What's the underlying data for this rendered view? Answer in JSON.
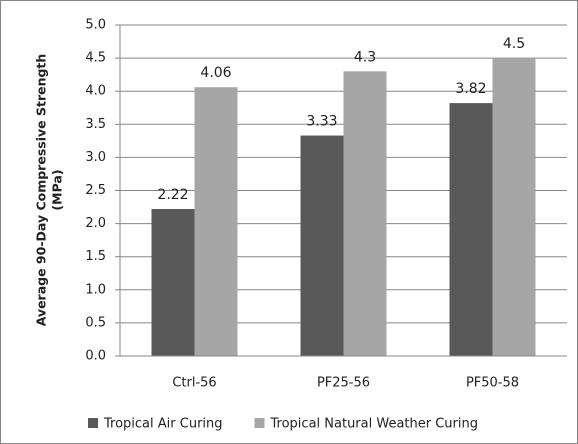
{
  "chart_data": {
    "type": "bar",
    "ylabel": [
      "Average 90-Day Compressive Strength",
      "(MPa)"
    ],
    "categories": [
      "Ctrl-56",
      "PF25-56",
      "PF50-58"
    ],
    "series": [
      {
        "name": "Tropical Air Curing",
        "color": "#595959",
        "values": [
          2.22,
          3.33,
          3.82
        ]
      },
      {
        "name": "Tropical Natural Weather Curing",
        "color": "#a6a6a6",
        "values": [
          4.06,
          4.3,
          4.5
        ]
      }
    ],
    "ylim": [
      0,
      5
    ],
    "yticks": [
      {
        "value": 0,
        "label": "0.0"
      },
      0.5,
      {
        "value": 1,
        "label": "1.0"
      },
      1.5,
      {
        "value": 2,
        "label": "2.0"
      },
      2.5,
      {
        "value": 3,
        "label": "3.0"
      },
      3.5,
      {
        "value": 4,
        "label": "4.0"
      },
      4.5,
      {
        "value": 5,
        "label": "5.0"
      }
    ],
    "grid": true,
    "legend": "bottom"
  }
}
